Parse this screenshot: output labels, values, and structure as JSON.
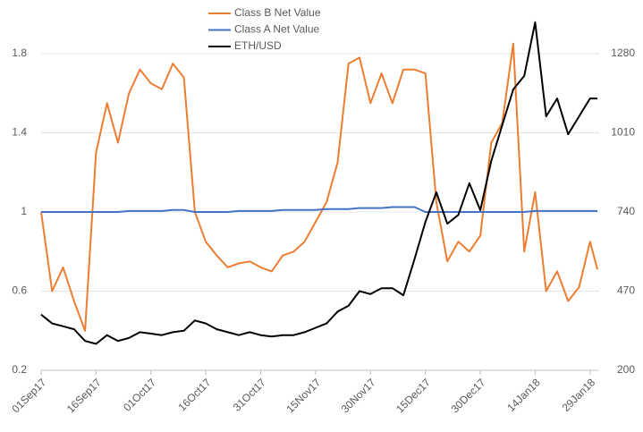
{
  "chart_data": {
    "type": "line",
    "x": [
      "2017-09-01",
      "2017-09-04",
      "2017-09-07",
      "2017-09-10",
      "2017-09-13",
      "2017-09-16",
      "2017-09-19",
      "2017-09-22",
      "2017-09-25",
      "2017-09-28",
      "2017-10-01",
      "2017-10-04",
      "2017-10-07",
      "2017-10-10",
      "2017-10-13",
      "2017-10-16",
      "2017-10-19",
      "2017-10-22",
      "2017-10-25",
      "2017-10-28",
      "2017-10-31",
      "2017-11-03",
      "2017-11-06",
      "2017-11-09",
      "2017-11-12",
      "2017-11-15",
      "2017-11-18",
      "2017-11-21",
      "2017-11-24",
      "2017-11-27",
      "2017-11-30",
      "2017-12-03",
      "2017-12-06",
      "2017-12-09",
      "2017-12-12",
      "2017-12-15",
      "2017-12-18",
      "2017-12-21",
      "2017-12-24",
      "2017-12-27",
      "2017-12-30",
      "2018-01-02",
      "2018-01-05",
      "2018-01-08",
      "2018-01-11",
      "2018-01-14",
      "2018-01-17",
      "2018-01-20",
      "2018-01-23",
      "2018-01-26",
      "2018-01-29",
      "2018-01-31"
    ],
    "series": [
      {
        "name": "Class B Net Value",
        "color": "#ed7d31",
        "values": [
          1.0,
          0.6,
          0.72,
          0.55,
          0.4,
          1.3,
          1.55,
          1.35,
          1.6,
          1.72,
          1.65,
          1.62,
          1.75,
          1.68,
          1.0,
          0.85,
          0.78,
          0.72,
          0.74,
          0.75,
          0.72,
          0.7,
          0.78,
          0.8,
          0.85,
          0.95,
          1.05,
          1.25,
          1.75,
          1.78,
          1.55,
          1.7,
          1.55,
          1.72,
          1.72,
          1.7,
          1.05,
          0.75,
          0.85,
          0.8,
          0.88,
          1.35,
          1.45,
          1.85,
          0.8,
          1.1,
          0.6,
          0.7,
          0.55,
          0.62,
          0.85,
          0.71
        ]
      },
      {
        "name": "Class A Net Value",
        "color": "#4472c4",
        "values": [
          1.0,
          1.0,
          1.0,
          1.0,
          1.0,
          1.0,
          1.0,
          1.0,
          1.005,
          1.005,
          1.005,
          1.005,
          1.01,
          1.01,
          1.0,
          1.0,
          1.0,
          1.0,
          1.005,
          1.005,
          1.005,
          1.005,
          1.01,
          1.01,
          1.01,
          1.01,
          1.015,
          1.015,
          1.015,
          1.02,
          1.02,
          1.02,
          1.025,
          1.025,
          1.025,
          1.0,
          1.0,
          1.0,
          1.0,
          1.0,
          1.0,
          1.0,
          1.0,
          1.0,
          1.0,
          1.005,
          1.005,
          1.005,
          1.005,
          1.005,
          1.005,
          1.005
        ]
      },
      {
        "name": "ETH/USD",
        "color": "#000000",
        "axis": "y2",
        "values": [
          390,
          360,
          350,
          340,
          300,
          290,
          320,
          300,
          310,
          330,
          325,
          320,
          330,
          335,
          370,
          360,
          340,
          330,
          320,
          330,
          320,
          315,
          320,
          320,
          330,
          345,
          360,
          400,
          420,
          470,
          460,
          480,
          480,
          456,
          578,
          706,
          807,
          700,
          730,
          838,
          746,
          914,
          1036,
          1158,
          1204,
          1387,
          1066,
          1127,
          1005,
          1066,
          1127,
          1127
        ]
      }
    ],
    "xlim": [
      "2017-09-01",
      "2018-01-31"
    ],
    "xticks": [
      {
        "value": "2017-09-01",
        "label": "01Sep17"
      },
      {
        "value": "2017-09-16",
        "label": "16Sep17"
      },
      {
        "value": "2017-10-01",
        "label": "01Oct17"
      },
      {
        "value": "2017-10-16",
        "label": "16Oct17"
      },
      {
        "value": "2017-10-31",
        "label": "31Oct17"
      },
      {
        "value": "2017-11-15",
        "label": "15Nov17"
      },
      {
        "value": "2017-11-30",
        "label": "30Nov17"
      },
      {
        "value": "2017-12-15",
        "label": "15Dec17"
      },
      {
        "value": "2017-12-30",
        "label": "30Dec17"
      },
      {
        "value": "2018-01-14",
        "label": "14Jan18"
      },
      {
        "value": "2018-01-29",
        "label": "29Jan18"
      }
    ],
    "ylim": [
      0.2,
      2.0
    ],
    "yticks": [
      0.2,
      0.6,
      1,
      1.4,
      1.8
    ],
    "y2lim": [
      200,
      1415
    ],
    "y2ticks": [
      200,
      470,
      740,
      1010,
      1280
    ],
    "grid": true,
    "legend": "top"
  }
}
